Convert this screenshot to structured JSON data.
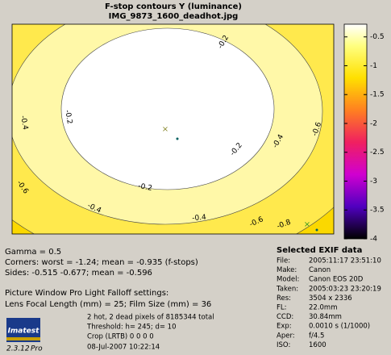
{
  "window": {
    "title": "F-stop contours   Y (luminance)",
    "subtitle": "IMG_9873_1600_deadhot.jpg"
  },
  "plot": {
    "contour_labels": [
      -0.2,
      -0.2,
      -0.2,
      -0.2,
      -0.4,
      -0.4,
      -0.4,
      -0.4,
      -0.6,
      -0.6,
      -0.6,
      -0.8
    ]
  },
  "colorbar": {
    "lim": [
      -0.28,
      -4
    ],
    "ticks": [
      -0.5,
      -1,
      -1.5,
      -2,
      -2.5,
      -3,
      -3.5,
      -4
    ]
  },
  "stats": {
    "lines": [
      "Gamma = 0.5",
      "Corners: worst = -1.24;  mean = -0.935 (f-stops)",
      "Sides:  -0.515  -0.677;  mean = -0.596",
      "Picture Window Pro Light Falloff settings:",
      "Lens Focal Length (mm) = 25;  Film Size (mm) = 36"
    ],
    "pixels": [
      "2 hot, 2 dead pixels of  8185344  total",
      "Threshold: h= 245; d= 10",
      "Crop (LRTB)  0  0  0  0"
    ],
    "date": "08-Jul-2007 10:22:14"
  },
  "logo": {
    "name": "Imatest",
    "version": "2.3.12",
    "edition": "Pro"
  },
  "exif": {
    "heading": "Selected EXIF data",
    "fields": [
      {
        "key": "File:",
        "value": "2005:11:17 23:51:10"
      },
      {
        "key": "Make:",
        "value": "Canon"
      },
      {
        "key": "Model:",
        "value": "Canon EOS 20D"
      },
      {
        "key": "Taken:",
        "value": "2005:03:23 23:20:19"
      },
      {
        "key": "Res:",
        "value": "3504 x 2336"
      },
      {
        "key": "FL:",
        "value": "22.0mm"
      },
      {
        "key": "CCD:",
        "value": "30.84mm"
      },
      {
        "key": "Exp:",
        "value": "0.0010 s (1/1000)"
      },
      {
        "key": "Aper:",
        "value": "f/4.5"
      },
      {
        "key": "ISO:",
        "value": "1600"
      }
    ]
  }
}
